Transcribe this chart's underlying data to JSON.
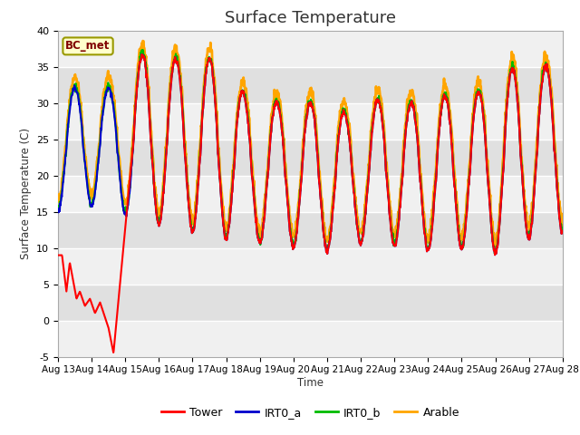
{
  "title": "Surface Temperature",
  "ylabel": "Surface Temperature (C)",
  "xlabel": "Time",
  "ylim": [
    -5,
    40
  ],
  "annotation": "BC_met",
  "legend": [
    "Tower",
    "IRT0_a",
    "IRT0_b",
    "Arable"
  ],
  "colors": [
    "red",
    "#0000cc",
    "#00cc00",
    "orange"
  ],
  "xtick_labels": [
    "Aug 13",
    "Aug 14",
    "Aug 15",
    "Aug 16",
    "Aug 17",
    "Aug 18",
    "Aug 19",
    "Aug 20",
    "Aug 21",
    "Aug 22",
    "Aug 23",
    "Aug 24",
    "Aug 25",
    "Aug 26",
    "Aug 27",
    "Aug 28"
  ],
  "yticks": [
    -5,
    0,
    5,
    10,
    15,
    20,
    25,
    30,
    35,
    40
  ],
  "plot_bg": "#e0e0e0",
  "band_color": "#f0f0f0",
  "title_fontsize": 13,
  "days": 15,
  "pts_per_day": 96
}
